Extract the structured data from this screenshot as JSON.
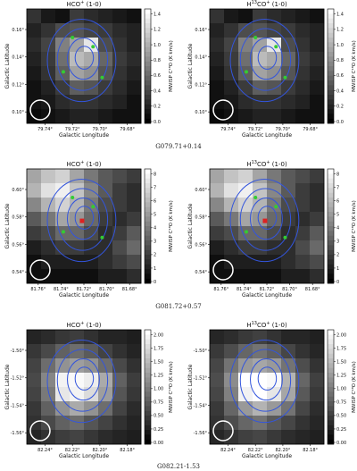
{
  "figure": {
    "captions": [
      "G079.71+0.14",
      "G081.72+0.57",
      "G082.21-1.53"
    ],
    "panels": [
      {
        "title": "HCO$^+$ (1-0)",
        "title_parts": [
          "HCO",
          "+",
          " (1-0)"
        ],
        "xlabel": "Galactic Longitude",
        "ylabel": "Galactic Latitude",
        "xticks": [
          "79.74°",
          "79.72°",
          "79.70°",
          "79.68°"
        ],
        "yticks": [
          "0.10°",
          "0.12°",
          "0.14°",
          "0.16°"
        ],
        "colorbar_label": "MWISP C¹⁸O (K km/s)",
        "colorbar_ticks": [
          "0.0",
          "0.2",
          "0.4",
          "0.6",
          "0.8",
          "1.0",
          "1.2",
          "1.4"
        ]
      },
      {
        "title": "H$^{13}$CO$^+$ (1-0)",
        "title_parts": [
          "H",
          "13",
          "CO",
          "+",
          " (1-0)"
        ],
        "xlabel": "Galactic Longitude",
        "ylabel": "Galactic Latitude",
        "xticks": [
          "79.74°",
          "79.72°",
          "79.70°",
          "79.68°"
        ],
        "yticks": [
          "0.10°",
          "0.12°",
          "0.14°",
          "0.16°"
        ],
        "colorbar_label": "MWISP C¹⁸O (K km/s)",
        "colorbar_ticks": [
          "0.0",
          "0.2",
          "0.4",
          "0.6",
          "0.8",
          "1.0",
          "1.2",
          "1.4"
        ]
      },
      {
        "title": "HCO$^+$ (1-0)",
        "title_parts": [
          "HCO",
          "+",
          " (1-0)"
        ],
        "xlabel": "Galactic Longitude",
        "ylabel": "Galactic Latitude",
        "xticks": [
          "81.76°",
          "81.74°",
          "81.72°",
          "81.70°",
          "81.68°"
        ],
        "yticks": [
          "0.54°",
          "0.56°",
          "0.58°",
          "0.60°"
        ],
        "colorbar_label": "MWISP C¹⁸O (K km/s)",
        "colorbar_ticks": [
          "0",
          "1",
          "2",
          "3",
          "4",
          "5",
          "6",
          "7",
          "8"
        ]
      },
      {
        "title": "H$^{13}$CO$^+$ (1-0)",
        "title_parts": [
          "H",
          "13",
          "CO",
          "+",
          " (1-0)"
        ],
        "xlabel": "Galactic Longitude",
        "ylabel": "Galactic Latitude",
        "xticks": [
          "81.76°",
          "81.74°",
          "81.72°",
          "81.70°",
          "81.68°"
        ],
        "yticks": [
          "0.54°",
          "0.56°",
          "0.58°",
          "0.60°"
        ],
        "colorbar_label": "MWISP C¹⁸O (K km/s)",
        "colorbar_ticks": [
          "0",
          "1",
          "2",
          "3",
          "4",
          "5",
          "6",
          "7",
          "8"
        ]
      },
      {
        "title": "HCO$^+$ (1-0)",
        "title_parts": [
          "HCO",
          "+",
          " (1-0)"
        ],
        "xlabel": "Galactic Longitude",
        "ylabel": "Galactic Latitude",
        "xticks": [
          "82.24°",
          "82.22°",
          "82.20°",
          "82.18°"
        ],
        "yticks": [
          "-1.56°",
          "-1.54°",
          "-1.52°",
          "-1.50°"
        ],
        "colorbar_label": "MWISP C¹⁸O (K km/s)",
        "colorbar_ticks": [
          "0.00",
          "0.25",
          "0.50",
          "0.75",
          "1.00",
          "1.25",
          "1.50",
          "1.75",
          "2.00"
        ]
      },
      {
        "title": "H$^{13}$CO$^+$ (1-0)",
        "title_parts": [
          "H",
          "13",
          "CO",
          "+",
          " (1-0)"
        ],
        "xlabel": "Galactic Longitude",
        "ylabel": "Galactic Latitude",
        "xticks": [
          "82.24°",
          "82.22°",
          "82.20°",
          "82.18°"
        ],
        "yticks": [
          "-1.56°",
          "-1.54°",
          "-1.52°",
          "-1.50°"
        ],
        "colorbar_label": "MWISP C¹⁸O (K km/s)",
        "colorbar_ticks": [
          "0.00",
          "0.25",
          "0.50",
          "0.75",
          "1.00",
          "1.25",
          "1.50",
          "1.75",
          "2.00"
        ]
      }
    ],
    "colors": {
      "contour": "#3355dd",
      "markers": "#33cc33",
      "peak": "#dd2222",
      "beam": "#ffffff"
    }
  },
  "chart_data": [
    {
      "type": "heatmap",
      "title": "HCO$^+$ (1-0)",
      "xlabel": "Galactic Longitude",
      "ylabel": "Galactic Latitude",
      "colorbar_range": [
        0,
        1.5
      ],
      "grid": [
        [
          0.3,
          0.15,
          0.1,
          0.35,
          0.25,
          0.2,
          0.15,
          0.1
        ],
        [
          0.2,
          0.3,
          0.45,
          0.5,
          0.4,
          0.35,
          0.25,
          0.2
        ],
        [
          0.25,
          0.4,
          0.75,
          0.95,
          1.35,
          0.45,
          0.3,
          0.2
        ],
        [
          0.2,
          0.35,
          0.65,
          1.1,
          1.0,
          0.6,
          0.35,
          0.25
        ],
        [
          0.15,
          0.3,
          0.55,
          0.95,
          0.85,
          0.5,
          0.3,
          0.2
        ],
        [
          0.1,
          0.2,
          0.35,
          0.55,
          0.5,
          0.35,
          0.25,
          0.15
        ],
        [
          0.1,
          0.15,
          0.25,
          0.3,
          0.3,
          0.25,
          0.2,
          0.1
        ],
        [
          0.05,
          0.1,
          0.15,
          0.2,
          0.2,
          0.15,
          0.1,
          0.1
        ]
      ]
    },
    {
      "type": "heatmap",
      "title": "H$^{13}$CO$^+$ (1-0)",
      "xlabel": "Galactic Longitude",
      "ylabel": "Galactic Latitude",
      "colorbar_range": [
        0,
        1.5
      ],
      "grid": [
        [
          0.3,
          0.15,
          0.1,
          0.35,
          0.25,
          0.2,
          0.15,
          0.1
        ],
        [
          0.2,
          0.3,
          0.45,
          0.5,
          0.4,
          0.35,
          0.25,
          0.2
        ],
        [
          0.25,
          0.4,
          0.75,
          0.95,
          1.35,
          0.45,
          0.3,
          0.2
        ],
        [
          0.2,
          0.35,
          0.65,
          1.1,
          1.0,
          0.6,
          0.35,
          0.25
        ],
        [
          0.15,
          0.3,
          0.55,
          0.95,
          0.85,
          0.5,
          0.3,
          0.2
        ],
        [
          0.1,
          0.2,
          0.35,
          0.55,
          0.5,
          0.35,
          0.25,
          0.15
        ],
        [
          0.1,
          0.15,
          0.25,
          0.3,
          0.3,
          0.25,
          0.2,
          0.1
        ],
        [
          0.05,
          0.1,
          0.15,
          0.2,
          0.2,
          0.15,
          0.1,
          0.1
        ]
      ]
    },
    {
      "type": "heatmap",
      "title": "HCO$^+$ (1-0)",
      "xlabel": "Galactic Longitude",
      "ylabel": "Galactic Latitude",
      "colorbar_range": [
        0,
        8.5
      ],
      "grid": [
        [
          5.5,
          6.5,
          7.0,
          5.5,
          4.0,
          3.0,
          2.5,
          2.0
        ],
        [
          6.0,
          7.5,
          8.0,
          6.5,
          4.5,
          3.0,
          2.0,
          1.5
        ],
        [
          4.5,
          6.0,
          7.0,
          6.0,
          4.0,
          2.5,
          2.0,
          1.5
        ],
        [
          3.0,
          4.0,
          5.5,
          5.0,
          3.5,
          2.0,
          1.5,
          2.0
        ],
        [
          2.0,
          2.5,
          3.5,
          3.5,
          2.5,
          1.5,
          2.0,
          3.0
        ],
        [
          1.0,
          1.5,
          2.0,
          2.0,
          1.5,
          1.5,
          2.5,
          3.5
        ],
        [
          0.5,
          1.0,
          1.0,
          1.0,
          1.0,
          1.5,
          2.0,
          2.5
        ],
        [
          0.5,
          0.5,
          0.5,
          0.5,
          0.5,
          1.0,
          1.0,
          1.5
        ]
      ]
    },
    {
      "type": "heatmap",
      "title": "H$^{13}$CO$^+$ (1-0)",
      "xlabel": "Galactic Longitude",
      "ylabel": "Galactic Latitude",
      "colorbar_range": [
        0,
        8.5
      ],
      "grid": [
        [
          5.5,
          6.5,
          7.0,
          5.5,
          4.0,
          3.0,
          2.5,
          2.0
        ],
        [
          6.0,
          7.5,
          8.0,
          6.5,
          4.5,
          3.0,
          2.0,
          1.5
        ],
        [
          4.5,
          6.0,
          7.0,
          6.0,
          4.0,
          2.5,
          2.0,
          1.5
        ],
        [
          3.0,
          4.0,
          5.5,
          5.0,
          3.5,
          2.0,
          1.5,
          2.0
        ],
        [
          2.0,
          2.5,
          3.5,
          3.5,
          2.5,
          1.5,
          2.0,
          3.0
        ],
        [
          1.0,
          1.5,
          2.0,
          2.0,
          1.5,
          1.5,
          2.5,
          3.5
        ],
        [
          0.5,
          1.0,
          1.0,
          1.0,
          1.0,
          1.5,
          2.0,
          2.5
        ],
        [
          0.5,
          0.5,
          0.5,
          0.5,
          0.5,
          1.0,
          1.0,
          1.5
        ]
      ]
    },
    {
      "type": "heatmap",
      "title": "HCO$^+$ (1-0)",
      "xlabel": "Galactic Longitude",
      "ylabel": "Galactic Latitude",
      "colorbar_range": [
        0,
        2.1
      ],
      "grid": [
        [
          0.3,
          0.35,
          0.45,
          0.5,
          0.4,
          0.3,
          0.3,
          0.25
        ],
        [
          0.45,
          0.6,
          0.8,
          0.9,
          0.75,
          0.55,
          0.4,
          0.3
        ],
        [
          0.55,
          0.9,
          1.2,
          1.3,
          1.2,
          0.9,
          0.6,
          0.4
        ],
        [
          0.6,
          1.1,
          2.0,
          2.05,
          1.95,
          1.4,
          0.8,
          0.5
        ],
        [
          0.55,
          1.0,
          1.9,
          2.0,
          1.8,
          1.3,
          0.7,
          0.45
        ],
        [
          0.45,
          0.8,
          1.2,
          1.4,
          1.2,
          0.9,
          0.55,
          0.35
        ],
        [
          0.4,
          0.6,
          0.8,
          0.9,
          0.7,
          0.55,
          0.4,
          0.3
        ],
        [
          0.3,
          0.4,
          0.5,
          0.55,
          0.45,
          0.35,
          0.3,
          0.25
        ]
      ]
    },
    {
      "type": "heatmap",
      "title": "H$^{13}$CO$^+$ (1-0)",
      "xlabel": "Galactic Longitude",
      "ylabel": "Galactic Latitude",
      "colorbar_range": [
        0,
        2.0
      ],
      "grid": [
        [
          0.3,
          0.35,
          0.45,
          0.5,
          0.4,
          0.3,
          0.3,
          0.25
        ],
        [
          0.45,
          0.6,
          0.8,
          0.9,
          0.75,
          0.55,
          0.4,
          0.3
        ],
        [
          0.55,
          0.9,
          1.2,
          1.3,
          1.2,
          0.9,
          0.6,
          0.4
        ],
        [
          0.6,
          1.1,
          2.0,
          2.05,
          1.95,
          1.4,
          0.8,
          0.5
        ],
        [
          0.55,
          1.0,
          1.9,
          2.0,
          1.8,
          1.3,
          0.7,
          0.45
        ],
        [
          0.45,
          0.8,
          1.2,
          1.4,
          1.2,
          0.9,
          0.55,
          0.35
        ],
        [
          0.4,
          0.6,
          0.8,
          0.9,
          0.7,
          0.55,
          0.4,
          0.3
        ],
        [
          0.3,
          0.4,
          0.5,
          0.55,
          0.45,
          0.35,
          0.3,
          0.25
        ]
      ]
    }
  ]
}
